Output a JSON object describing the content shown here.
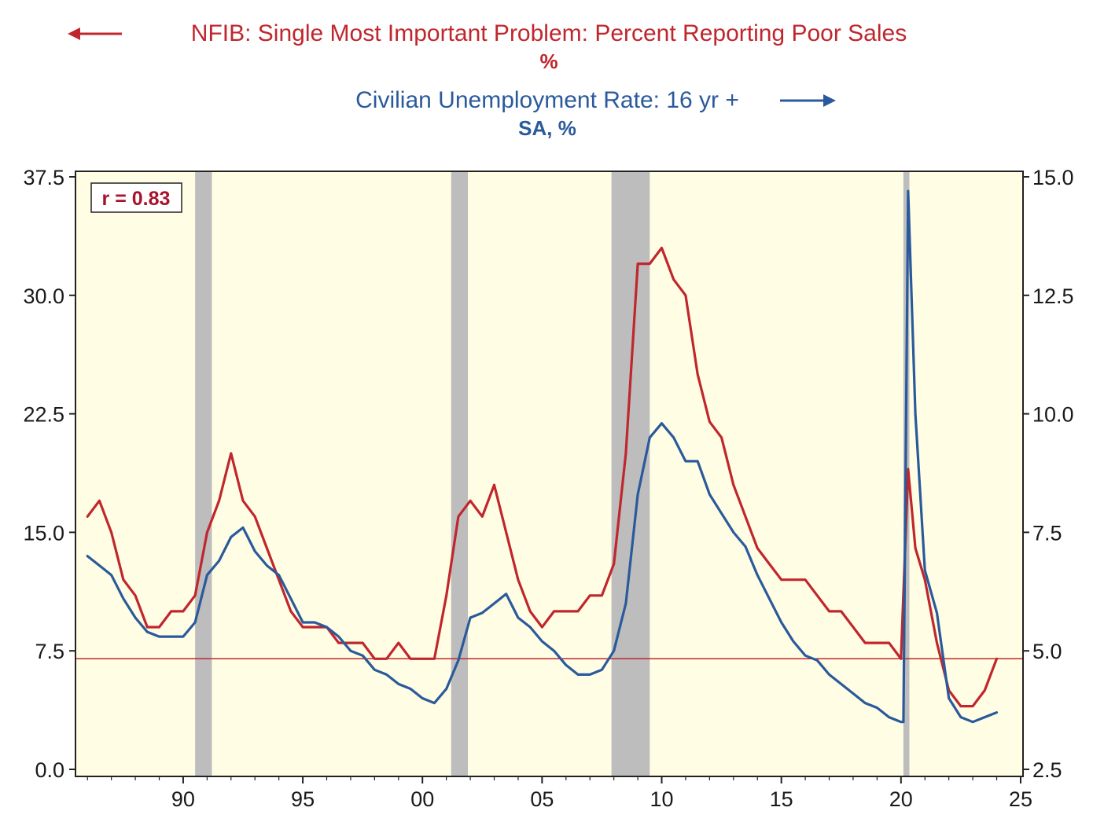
{
  "chart_data": {
    "type": "line",
    "legend": [
      {
        "label": "NFIB: Single Most Important Problem: Percent Reporting Poor Sales",
        "unit": "%",
        "axis": "left",
        "color": "#c0262d",
        "arrow": "left"
      },
      {
        "label": "Civilian Unemployment Rate: 16 yr +",
        "unit": "SA, %",
        "axis": "right",
        "color": "#2a5a9c",
        "arrow": "right"
      }
    ],
    "annotation": "r = 0.83",
    "x_ticks": [
      "90",
      "95",
      "00",
      "05",
      "10",
      "15",
      "20",
      "25"
    ],
    "xlim": [
      1985.5,
      2025.1
    ],
    "y_left": {
      "ticks": [
        "0.0",
        "7.5",
        "15.0",
        "22.5",
        "30.0",
        "37.5"
      ],
      "range": [
        0,
        37.5
      ]
    },
    "y_right": {
      "ticks": [
        "2.5",
        "5.0",
        "7.5",
        "10.0",
        "12.5",
        "15.0"
      ],
      "range": [
        2.5,
        15.0
      ]
    },
    "reference_line": {
      "axis": "left",
      "value": 7.0
    },
    "recessions": [
      [
        1990.5,
        1991.2
      ],
      [
        2001.2,
        2001.9
      ],
      [
        2007.9,
        2009.5
      ],
      [
        2020.1,
        2020.35
      ]
    ],
    "background_color": "#fffde3",
    "series": [
      {
        "name": "NFIB: Single Most Important Problem: Percent Reporting Poor Sales",
        "axis": "left",
        "color": "#c0262d",
        "x": [
          1986.0,
          1986.5,
          1987.0,
          1987.5,
          1988.0,
          1988.5,
          1989.0,
          1989.5,
          1990.0,
          1990.5,
          1991.0,
          1991.5,
          1992.0,
          1992.5,
          1993.0,
          1993.5,
          1994.0,
          1994.5,
          1995.0,
          1995.5,
          1996.0,
          1996.5,
          1997.0,
          1997.5,
          1998.0,
          1998.5,
          1999.0,
          1999.5,
          2000.0,
          2000.5,
          2001.0,
          2001.5,
          2002.0,
          2002.5,
          2003.0,
          2003.5,
          2004.0,
          2004.5,
          2005.0,
          2005.5,
          2006.0,
          2006.5,
          2007.0,
          2007.5,
          2008.0,
          2008.5,
          2009.0,
          2009.5,
          2010.0,
          2010.5,
          2011.0,
          2011.5,
          2012.0,
          2012.5,
          2013.0,
          2013.5,
          2014.0,
          2014.5,
          2015.0,
          2015.5,
          2016.0,
          2016.5,
          2017.0,
          2017.5,
          2018.0,
          2018.5,
          2019.0,
          2019.5,
          2020.0,
          2020.3,
          2020.6,
          2021.0,
          2021.5,
          2022.0,
          2022.5,
          2023.0,
          2023.5,
          2024.0
        ],
        "values": [
          16,
          17,
          15,
          12,
          11,
          9,
          9,
          10,
          10,
          11,
          15,
          17,
          20,
          17,
          16,
          14,
          12,
          10,
          9,
          9,
          9,
          8,
          8,
          8,
          7,
          7,
          8,
          7,
          7,
          7,
          11,
          16,
          17,
          16,
          18,
          15,
          12,
          10,
          9,
          10,
          10,
          10,
          11,
          11,
          13,
          20,
          32,
          32,
          33,
          31,
          30,
          25,
          22,
          21,
          18,
          16,
          14,
          13,
          12,
          12,
          12,
          11,
          10,
          10,
          9,
          8,
          8,
          8,
          7,
          19,
          14,
          12,
          8,
          5,
          4,
          4,
          5,
          7
        ]
      },
      {
        "name": "Civilian Unemployment Rate: 16 yr +",
        "axis": "right",
        "color": "#2a5a9c",
        "x": [
          1986.0,
          1986.5,
          1987.0,
          1987.5,
          1988.0,
          1988.5,
          1989.0,
          1989.5,
          1990.0,
          1990.5,
          1991.0,
          1991.5,
          1992.0,
          1992.5,
          1993.0,
          1993.5,
          1994.0,
          1994.5,
          1995.0,
          1995.5,
          1996.0,
          1996.5,
          1997.0,
          1997.5,
          1998.0,
          1998.5,
          1999.0,
          1999.5,
          2000.0,
          2000.5,
          2001.0,
          2001.5,
          2002.0,
          2002.5,
          2003.0,
          2003.5,
          2004.0,
          2004.5,
          2005.0,
          2005.5,
          2006.0,
          2006.5,
          2007.0,
          2007.5,
          2008.0,
          2008.5,
          2009.0,
          2009.5,
          2010.0,
          2010.5,
          2011.0,
          2011.5,
          2012.0,
          2012.5,
          2013.0,
          2013.5,
          2014.0,
          2014.5,
          2015.0,
          2015.5,
          2016.0,
          2016.5,
          2017.0,
          2017.5,
          2018.0,
          2018.5,
          2019.0,
          2019.5,
          2020.0,
          2020.1,
          2020.3,
          2020.6,
          2021.0,
          2021.5,
          2022.0,
          2022.5,
          2023.0,
          2023.5,
          2024.0
        ],
        "values": [
          7.0,
          6.8,
          6.6,
          6.1,
          5.7,
          5.4,
          5.3,
          5.3,
          5.3,
          5.6,
          6.6,
          6.9,
          7.4,
          7.6,
          7.1,
          6.8,
          6.6,
          6.1,
          5.6,
          5.6,
          5.5,
          5.3,
          5.0,
          4.9,
          4.6,
          4.5,
          4.3,
          4.2,
          4.0,
          3.9,
          4.2,
          4.8,
          5.7,
          5.8,
          6.0,
          6.2,
          5.7,
          5.5,
          5.2,
          5.0,
          4.7,
          4.5,
          4.5,
          4.6,
          5.0,
          6.0,
          8.3,
          9.5,
          9.8,
          9.5,
          9.0,
          9.0,
          8.3,
          7.9,
          7.5,
          7.2,
          6.6,
          6.1,
          5.6,
          5.2,
          4.9,
          4.8,
          4.5,
          4.3,
          4.1,
          3.9,
          3.8,
          3.6,
          3.5,
          3.5,
          14.7,
          10.0,
          6.7,
          5.8,
          4.0,
          3.6,
          3.5,
          3.6,
          3.7
        ]
      }
    ]
  }
}
